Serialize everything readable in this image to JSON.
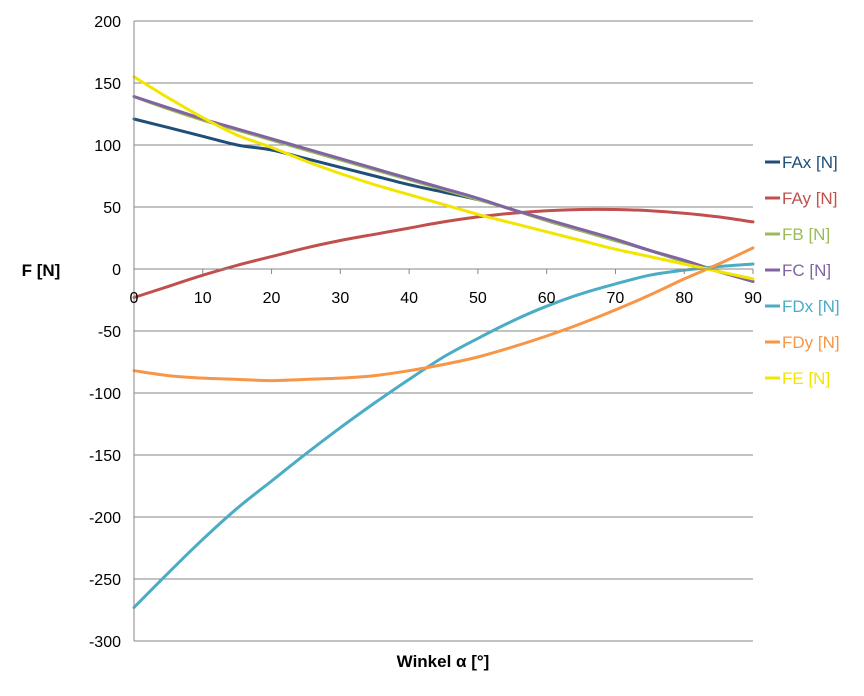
{
  "chart_data": {
    "type": "line",
    "xlabel": "Winkel α [°]",
    "ylabel": "F [N]",
    "xlim": [
      0,
      90
    ],
    "ylim": [
      -300,
      200
    ],
    "x_ticks": [
      0,
      10,
      20,
      30,
      40,
      50,
      60,
      70,
      80,
      90
    ],
    "y_ticks": [
      200,
      150,
      100,
      50,
      0,
      -50,
      -100,
      -150,
      -200,
      -250,
      -300
    ],
    "grid": "horizontal",
    "legend_position": "right",
    "x": [
      0,
      5,
      10,
      15,
      20,
      25,
      30,
      35,
      40,
      45,
      50,
      55,
      60,
      65,
      70,
      75,
      80,
      85,
      90
    ],
    "series": [
      {
        "name": "FAx [N]",
        "color": "#1F4E79",
        "values": [
          121,
          114,
          107,
          100,
          96,
          89,
          82,
          75,
          68,
          62,
          56,
          48,
          39,
          31,
          23,
          15,
          6,
          -2,
          -10
        ]
      },
      {
        "name": "FAy [N]",
        "color": "#C0504D",
        "values": [
          -23,
          -14,
          -5,
          3,
          10,
          17,
          23,
          28,
          33,
          38,
          42,
          45,
          47,
          48,
          48,
          47,
          45,
          42,
          38
        ]
      },
      {
        "name": "FB [N]",
        "color": "#9BBB59",
        "values": [
          139,
          129,
          120,
          112,
          104,
          96,
          88,
          80,
          72,
          64,
          56,
          48,
          39,
          31,
          23,
          15,
          6,
          -2,
          -10
        ]
      },
      {
        "name": "FC [N]",
        "color": "#8064A2",
        "values": [
          139,
          130,
          121,
          113,
          105,
          97,
          89,
          81,
          73,
          65,
          57,
          48,
          40,
          32,
          24,
          15,
          7,
          -2,
          -10
        ]
      },
      {
        "name": "FDx [N]",
        "color": "#4BACC6",
        "values": [
          -273,
          -245,
          -218,
          -193,
          -171,
          -149,
          -128,
          -108,
          -89,
          -71,
          -56,
          -42,
          -30,
          -20,
          -12,
          -5,
          -1,
          2,
          4
        ]
      },
      {
        "name": "FDy [N]",
        "color": "#F79646",
        "values": [
          -82,
          -86,
          -88,
          -89,
          -90,
          -89,
          -88,
          -86,
          -82,
          -77,
          -71,
          -63,
          -54,
          -44,
          -33,
          -21,
          -8,
          4,
          17
        ]
      },
      {
        "name": "FE [N]",
        "color": "#F2E600",
        "values": [
          155,
          138,
          122,
          108,
          98,
          87,
          77,
          68,
          60,
          52,
          44,
          37,
          30,
          23,
          16,
          10,
          4,
          -2,
          -8
        ]
      }
    ]
  }
}
